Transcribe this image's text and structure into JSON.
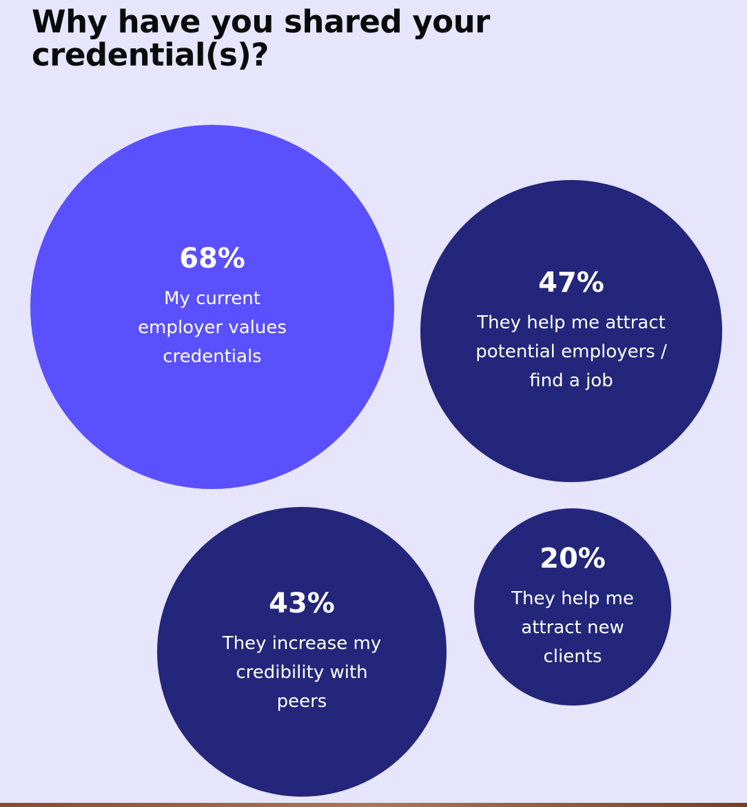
{
  "chart_data": {
    "type": "bubble",
    "title": "Why have you shared your credential(s)?",
    "categories": [
      "My current employer values credentials",
      "They help me attract potential employers / find a job",
      "They increase my credibility with peers",
      "They help me attract new clients"
    ],
    "values": [
      68,
      47,
      43,
      20
    ],
    "value_labels": [
      "68%",
      "47%",
      "43%",
      "20%"
    ],
    "colors": [
      "#5a50fe",
      "#23267a",
      "#23267a",
      "#23267a"
    ]
  }
}
